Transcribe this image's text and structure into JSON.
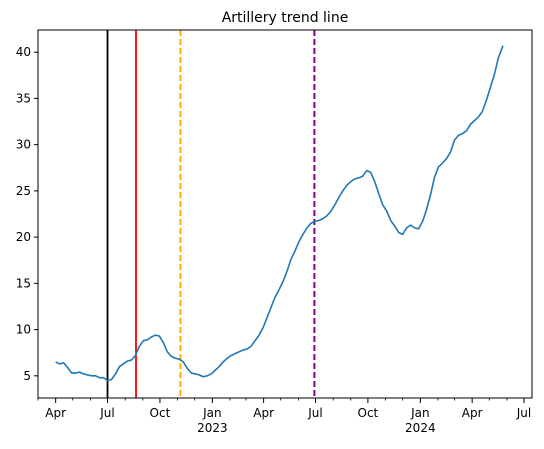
{
  "chart_data": {
    "type": "line",
    "title": "Artillery trend line",
    "xlabel": "",
    "ylabel": "",
    "xlim": [
      "2022-03-01",
      "2024-07-15"
    ],
    "ylim": [
      2.6,
      42.4
    ],
    "grid": false,
    "y_ticks": [
      5,
      10,
      15,
      20,
      25,
      30,
      35,
      40
    ],
    "x_ticks": [
      {
        "date": "2022-04-01",
        "label": "Apr",
        "sublabel": ""
      },
      {
        "date": "2022-07-01",
        "label": "Jul",
        "sublabel": ""
      },
      {
        "date": "2022-10-01",
        "label": "Oct",
        "sublabel": ""
      },
      {
        "date": "2023-01-01",
        "label": "Jan",
        "sublabel": "2023"
      },
      {
        "date": "2023-04-01",
        "label": "Apr",
        "sublabel": ""
      },
      {
        "date": "2023-07-01",
        "label": "Jul",
        "sublabel": ""
      },
      {
        "date": "2023-10-01",
        "label": "Oct",
        "sublabel": ""
      },
      {
        "date": "2024-01-01",
        "label": "Jan",
        "sublabel": "2024"
      },
      {
        "date": "2024-04-01",
        "label": "Apr",
        "sublabel": ""
      },
      {
        "date": "2024-07-01",
        "label": "Jul",
        "sublabel": ""
      }
    ],
    "series": [
      {
        "color": "#1f77b4",
        "points": [
          [
            "2022-04-01",
            6.5
          ],
          [
            "2022-04-08",
            6.3
          ],
          [
            "2022-04-15",
            6.4
          ],
          [
            "2022-04-22",
            5.9
          ],
          [
            "2022-04-29",
            5.3
          ],
          [
            "2022-05-06",
            5.3
          ],
          [
            "2022-05-13",
            5.4
          ],
          [
            "2022-05-20",
            5.2
          ],
          [
            "2022-05-27",
            5.1
          ],
          [
            "2022-06-03",
            5.0
          ],
          [
            "2022-06-10",
            5.0
          ],
          [
            "2022-06-17",
            4.8
          ],
          [
            "2022-06-24",
            4.8
          ],
          [
            "2022-07-01",
            4.5
          ],
          [
            "2022-07-08",
            4.6
          ],
          [
            "2022-07-15",
            5.2
          ],
          [
            "2022-07-22",
            6.0
          ],
          [
            "2022-07-29",
            6.3
          ],
          [
            "2022-08-05",
            6.6
          ],
          [
            "2022-08-12",
            6.7
          ],
          [
            "2022-08-19",
            7.2
          ],
          [
            "2022-08-26",
            8.2
          ],
          [
            "2022-09-02",
            8.8
          ],
          [
            "2022-09-09",
            8.9
          ],
          [
            "2022-09-16",
            9.2
          ],
          [
            "2022-09-23",
            9.4
          ],
          [
            "2022-09-30",
            9.3
          ],
          [
            "2022-10-07",
            8.6
          ],
          [
            "2022-10-14",
            7.6
          ],
          [
            "2022-10-21",
            7.1
          ],
          [
            "2022-10-28",
            6.9
          ],
          [
            "2022-11-04",
            6.8
          ],
          [
            "2022-11-11",
            6.5
          ],
          [
            "2022-11-18",
            5.8
          ],
          [
            "2022-11-25",
            5.3
          ],
          [
            "2022-12-02",
            5.2
          ],
          [
            "2022-12-09",
            5.1
          ],
          [
            "2022-12-16",
            4.9
          ],
          [
            "2022-12-23",
            5.0
          ],
          [
            "2022-12-30",
            5.2
          ],
          [
            "2023-01-06",
            5.6
          ],
          [
            "2023-01-13",
            6.0
          ],
          [
            "2023-01-20",
            6.5
          ],
          [
            "2023-01-27",
            6.9
          ],
          [
            "2023-02-03",
            7.2
          ],
          [
            "2023-02-10",
            7.4
          ],
          [
            "2023-02-17",
            7.6
          ],
          [
            "2023-02-24",
            7.8
          ],
          [
            "2023-03-03",
            7.9
          ],
          [
            "2023-03-10",
            8.2
          ],
          [
            "2023-03-17",
            8.8
          ],
          [
            "2023-03-24",
            9.4
          ],
          [
            "2023-03-31",
            10.2
          ],
          [
            "2023-04-07",
            11.3
          ],
          [
            "2023-04-14",
            12.4
          ],
          [
            "2023-04-21",
            13.5
          ],
          [
            "2023-04-28",
            14.3
          ],
          [
            "2023-05-05",
            15.2
          ],
          [
            "2023-05-12",
            16.3
          ],
          [
            "2023-05-19",
            17.6
          ],
          [
            "2023-05-26",
            18.5
          ],
          [
            "2023-06-02",
            19.5
          ],
          [
            "2023-06-09",
            20.3
          ],
          [
            "2023-06-16",
            21.0
          ],
          [
            "2023-06-23",
            21.5
          ],
          [
            "2023-06-30",
            21.7
          ],
          [
            "2023-07-07",
            21.8
          ],
          [
            "2023-07-14",
            22.0
          ],
          [
            "2023-07-21",
            22.3
          ],
          [
            "2023-07-28",
            22.8
          ],
          [
            "2023-08-04",
            23.5
          ],
          [
            "2023-08-11",
            24.3
          ],
          [
            "2023-08-18",
            25.0
          ],
          [
            "2023-08-25",
            25.6
          ],
          [
            "2023-09-01",
            26.0
          ],
          [
            "2023-09-08",
            26.3
          ],
          [
            "2023-09-15",
            26.4
          ],
          [
            "2023-09-22",
            26.6
          ],
          [
            "2023-09-29",
            27.2
          ],
          [
            "2023-10-06",
            27.0
          ],
          [
            "2023-10-13",
            26.0
          ],
          [
            "2023-10-20",
            24.7
          ],
          [
            "2023-10-27",
            23.5
          ],
          [
            "2023-11-03",
            22.8
          ],
          [
            "2023-11-10",
            21.8
          ],
          [
            "2023-11-17",
            21.2
          ],
          [
            "2023-11-24",
            20.5
          ],
          [
            "2023-12-01",
            20.3
          ],
          [
            "2023-12-08",
            21.0
          ],
          [
            "2023-12-15",
            21.3
          ],
          [
            "2023-12-22",
            21.0
          ],
          [
            "2023-12-29",
            20.9
          ],
          [
            "2024-01-05",
            21.7
          ],
          [
            "2024-01-12",
            23.0
          ],
          [
            "2024-01-19",
            24.6
          ],
          [
            "2024-01-26",
            26.5
          ],
          [
            "2024-02-02",
            27.6
          ],
          [
            "2024-02-09",
            28.0
          ],
          [
            "2024-02-16",
            28.5
          ],
          [
            "2024-02-23",
            29.2
          ],
          [
            "2024-03-01",
            30.5
          ],
          [
            "2024-03-08",
            31.0
          ],
          [
            "2024-03-15",
            31.2
          ],
          [
            "2024-03-22",
            31.5
          ],
          [
            "2024-03-29",
            32.2
          ],
          [
            "2024-04-05",
            32.6
          ],
          [
            "2024-04-12",
            33.0
          ],
          [
            "2024-04-19",
            33.6
          ],
          [
            "2024-04-26",
            34.8
          ],
          [
            "2024-05-03",
            36.2
          ],
          [
            "2024-05-10",
            37.6
          ],
          [
            "2024-05-17",
            39.4
          ],
          [
            "2024-05-22",
            40.2
          ],
          [
            "2024-05-25",
            40.7
          ]
        ]
      }
    ],
    "vertical_lines": [
      {
        "date": "2022-07-01",
        "color": "#000000",
        "style": "solid"
      },
      {
        "date": "2022-08-20",
        "color": "#ff0000",
        "style": "solid"
      },
      {
        "date": "2022-11-06",
        "color": "#ffa500",
        "style": "dashed"
      },
      {
        "date": "2023-06-29",
        "color": "#ff0000",
        "style": "dashed"
      },
      {
        "date": "2023-06-29",
        "color": "#800080",
        "style": "dashed"
      }
    ]
  }
}
